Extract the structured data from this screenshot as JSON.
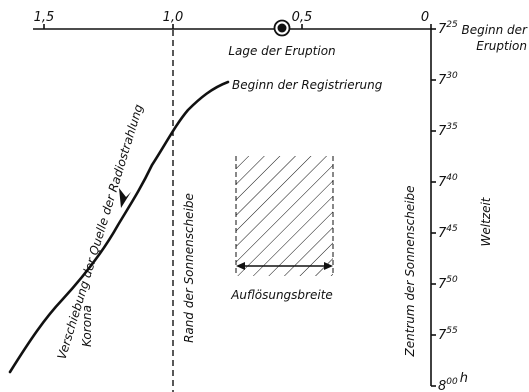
{
  "x_axis": {
    "ticks": [
      {
        "label": "1,5"
      },
      {
        "label": "1,0"
      },
      {
        "label": "0,5"
      },
      {
        "label": "0"
      }
    ]
  },
  "eruption": {
    "label": "Lage der Eruption"
  },
  "time_axis": {
    "title": "Weltzeit",
    "ticks": [
      {
        "hour": "7",
        "minute": "25"
      },
      {
        "hour": "7",
        "minute": "30"
      },
      {
        "hour": "7",
        "minute": "35"
      },
      {
        "hour": "7",
        "minute": "40"
      },
      {
        "hour": "7",
        "minute": "45"
      },
      {
        "hour": "7",
        "minute": "50"
      },
      {
        "hour": "7",
        "minute": "55"
      },
      {
        "hour": "8",
        "minute": "00",
        "unit": "h"
      }
    ],
    "first_tick_note_line1": "Beginn der",
    "first_tick_note_line2": "Eruption"
  },
  "labels": {
    "registration_start": "Beginn der Registrierung",
    "source_shift": "Verschiebung der Quelle der Radiostrahlung",
    "corona": "Korona",
    "sun_edge": "Rand der Sonnenscheibe",
    "sun_center": "Zentrum der Sonnenscheibe",
    "resolution": "Auflösungsbreite"
  }
}
